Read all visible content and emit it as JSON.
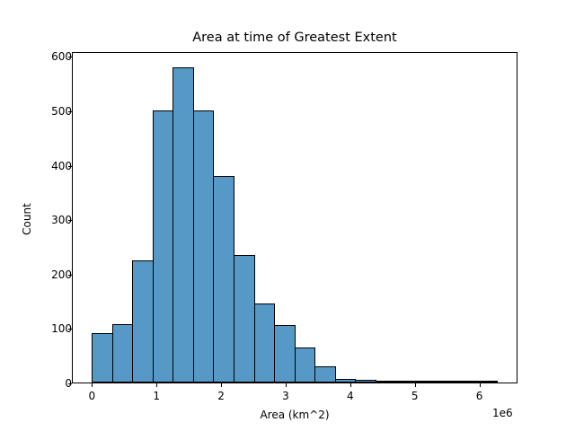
{
  "chart_data": {
    "type": "bar",
    "title": "Area at time of Greatest Extent",
    "xlabel": "Area (km^2)",
    "ylabel": "Count",
    "x_offset_label": "1e6",
    "xlim": [
      -0.31,
      6.59
    ],
    "ylim": [
      0,
      609
    ],
    "x_ticks": [
      0,
      1,
      2,
      3,
      4,
      5,
      6
    ],
    "y_ticks": [
      0,
      100,
      200,
      300,
      400,
      500,
      600
    ],
    "bin_width": 0.3135,
    "bin_edges": [
      0,
      0.313,
      0.627,
      0.94,
      1.254,
      1.567,
      1.881,
      2.194,
      2.508,
      2.821,
      3.135,
      3.448,
      3.762,
      4.075,
      4.389,
      4.702,
      5.016,
      5.329,
      5.643,
      5.956,
      6.27
    ],
    "values": [
      90,
      107,
      225,
      500,
      579,
      500,
      380,
      235,
      146,
      105,
      64,
      30,
      7,
      5,
      2,
      2,
      2,
      0,
      1,
      1
    ],
    "bar_color": "#5698c6",
    "edge_color": "#000000",
    "grid": false,
    "legend": null
  },
  "labels": {
    "title": "Area at time of Greatest Extent",
    "xlabel": "Area (km^2)",
    "ylabel": "Count",
    "offset": "1e6",
    "xticks": [
      "0",
      "1",
      "2",
      "3",
      "4",
      "5",
      "6"
    ],
    "yticks": [
      "0",
      "100",
      "200",
      "300",
      "400",
      "500",
      "600"
    ]
  }
}
